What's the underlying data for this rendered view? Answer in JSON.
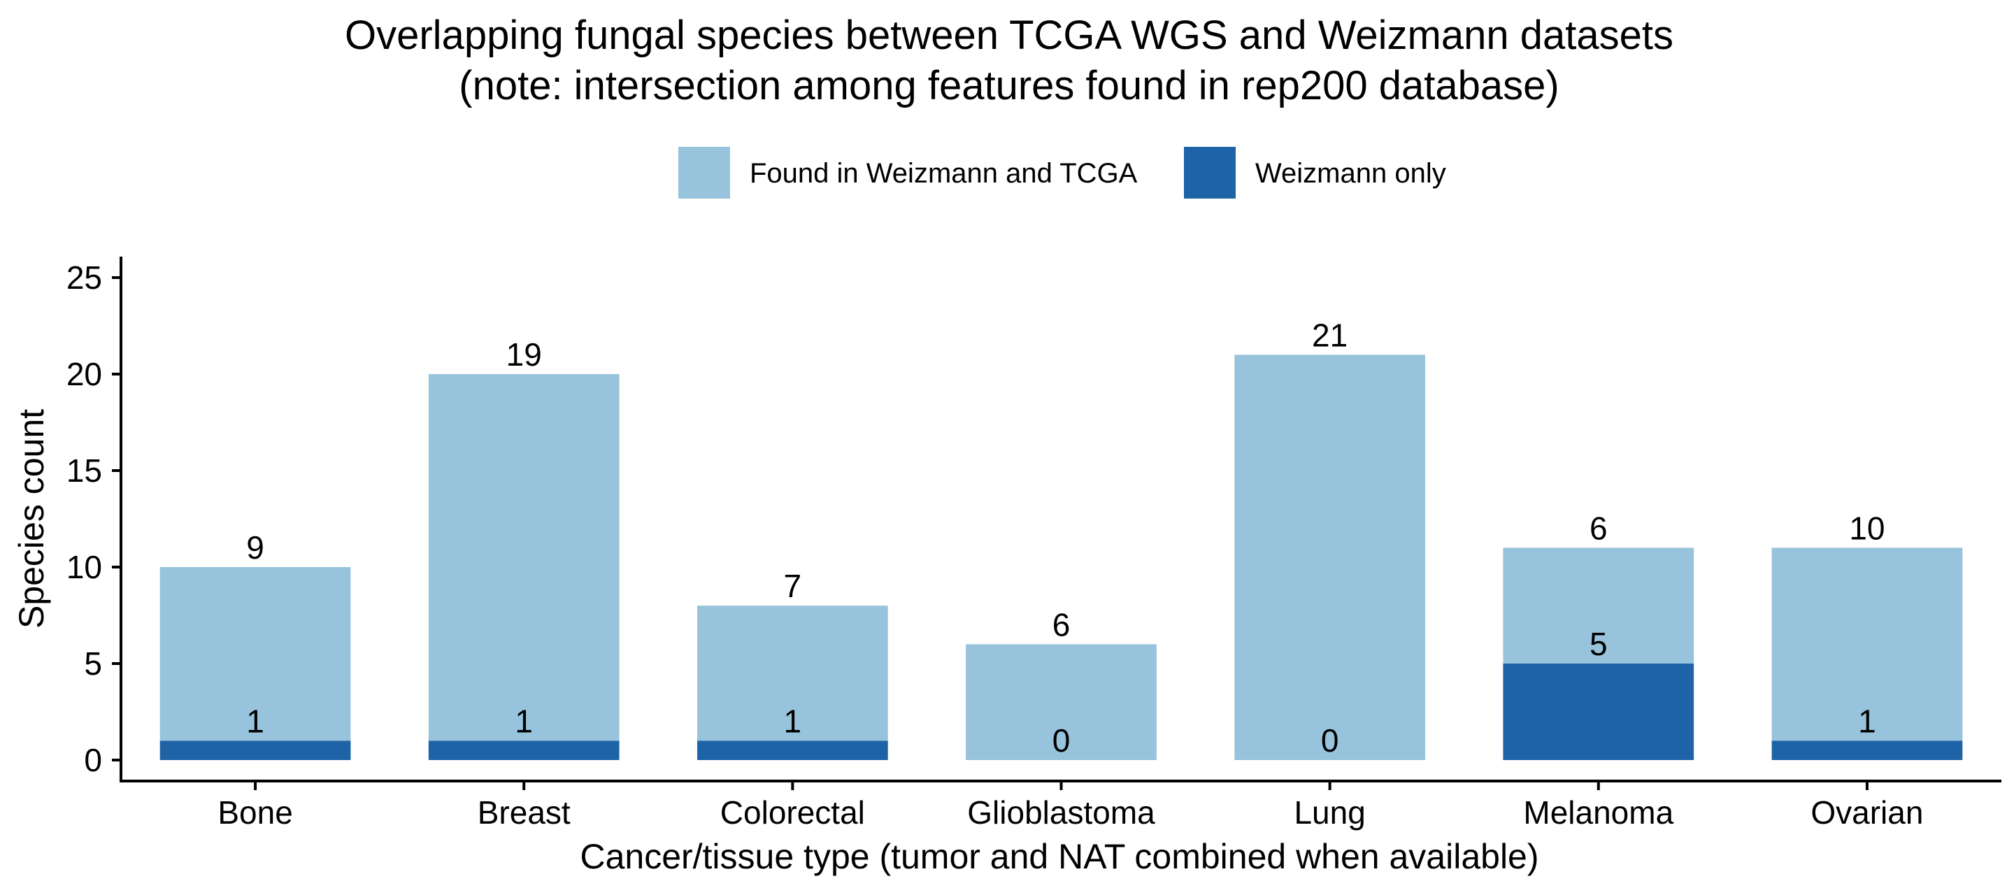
{
  "chart_data": {
    "type": "bar",
    "stacked": true,
    "title": "Overlapping fungal species between TCGA WGS and Weizmann datasets",
    "subtitle": "(note: intersection among features found in rep200 database)",
    "xlabel": "Cancer/tissue type (tumor and NAT combined when available)",
    "ylabel": "Species count",
    "ylim": [
      0,
      26
    ],
    "yticks": [
      0,
      5,
      10,
      15,
      20,
      25
    ],
    "categories": [
      "Bone",
      "Breast",
      "Colorectal",
      "Glioblastoma",
      "Lung",
      "Melanoma",
      "Ovarian"
    ],
    "series": [
      {
        "name": "Found in Weizmann and TCGA",
        "values": [
          9,
          19,
          7,
          6,
          21,
          6,
          10
        ],
        "color": "#97c3dc"
      },
      {
        "name": "Weizmann only",
        "values": [
          1,
          1,
          1,
          0,
          0,
          5,
          1
        ],
        "color": "#1f63a7"
      }
    ],
    "legend_position": "top",
    "grid": false
  }
}
